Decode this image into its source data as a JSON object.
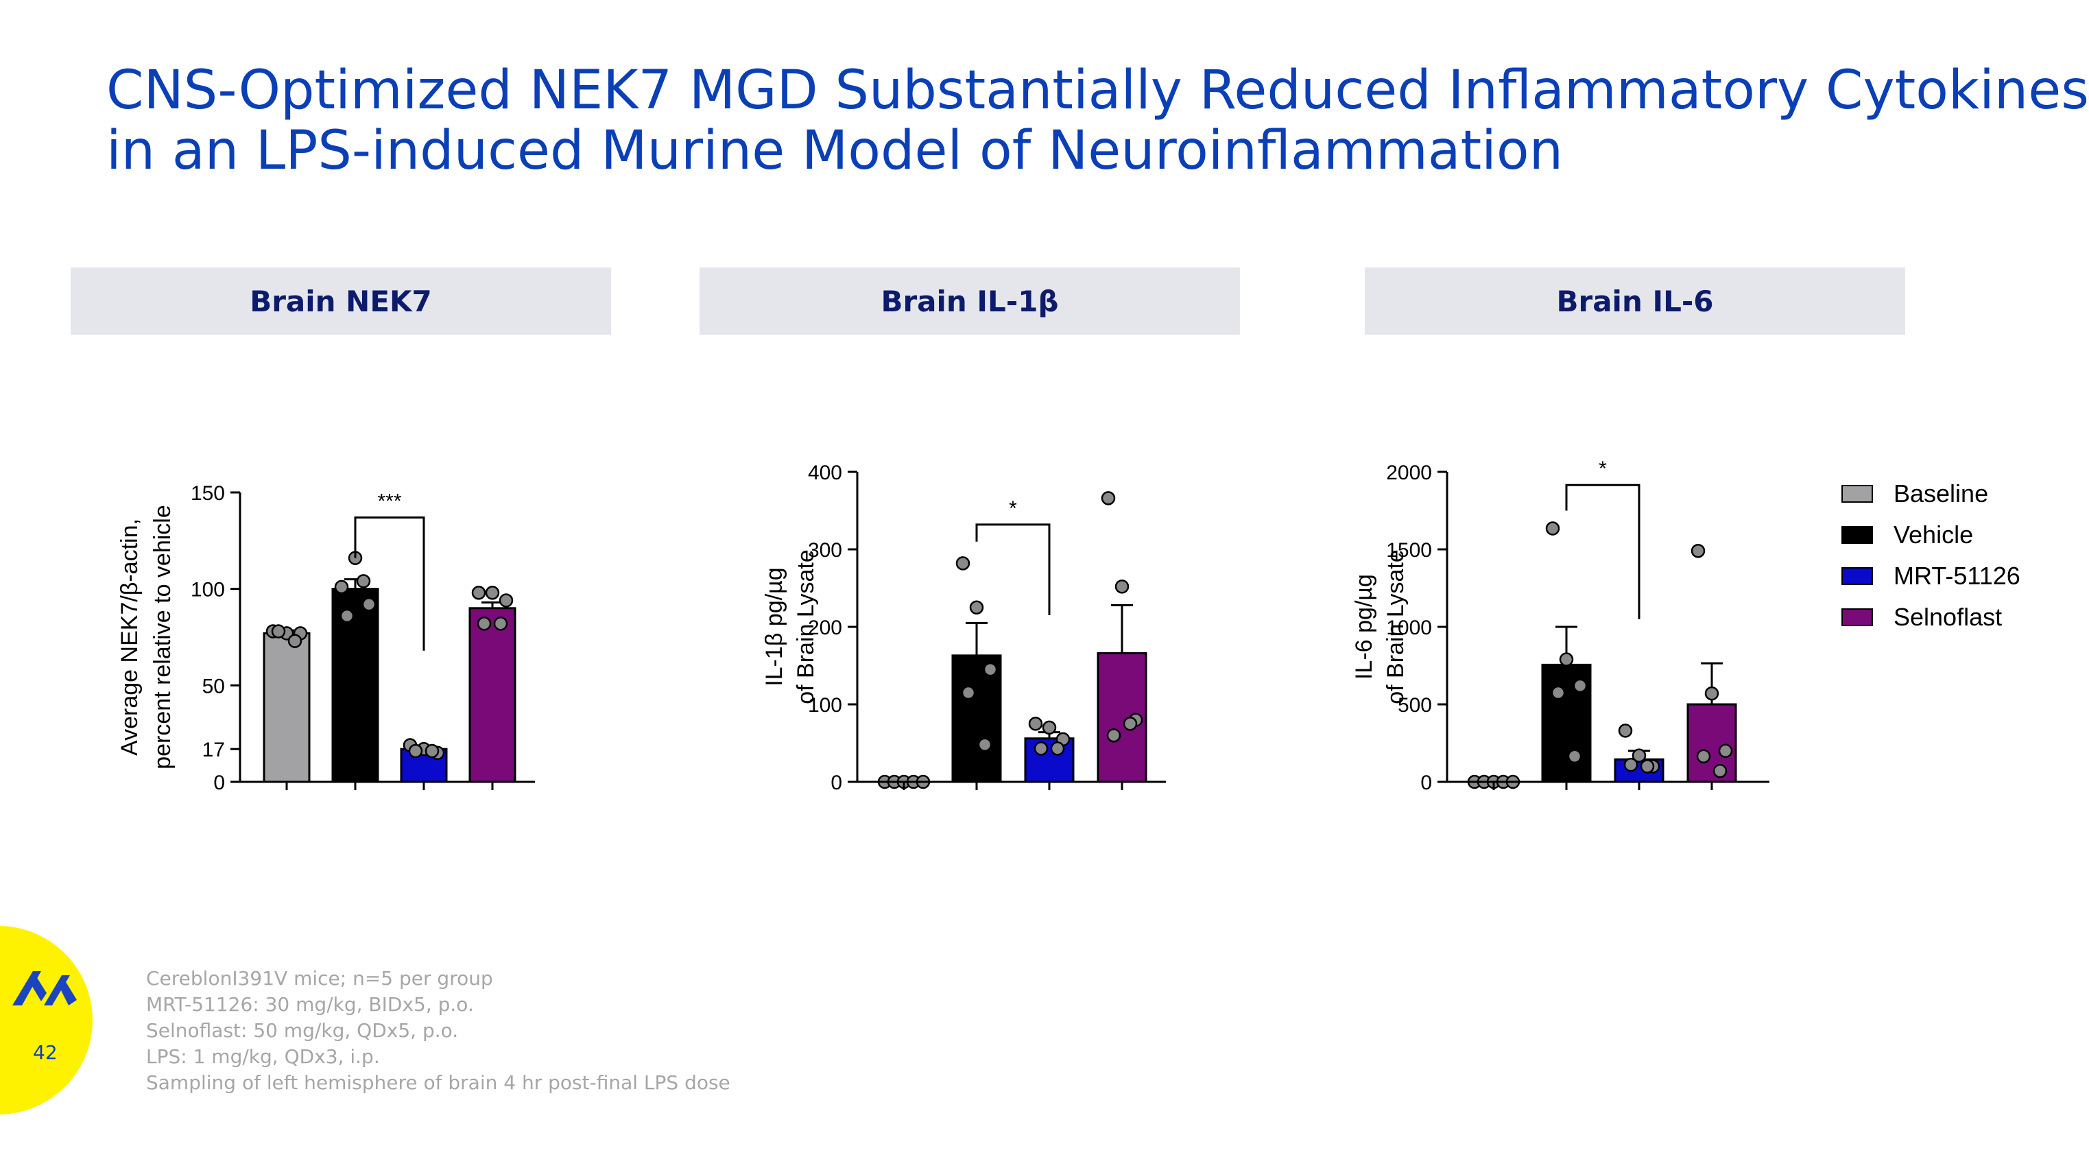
{
  "title": {
    "line1": "CNS-Optimized NEK7 MGD Substantially Reduced Inflammatory Cytokines",
    "line2": "in an LPS-induced Murine Model of Neuroinflammation"
  },
  "colors": {
    "title": "#0a3fb7",
    "baseline": "#a2a2a4",
    "vehicle": "#000000",
    "mrt": "#0a0acc",
    "selnoflast": "#7a0a78",
    "point_fill": "#8a8a8a",
    "header_bg": "#e5e6ec",
    "logo_yellow": "#fff200",
    "logo_blue": "#1a44c0"
  },
  "legend": {
    "items": [
      {
        "label": "Baseline",
        "color": "#a2a2a4"
      },
      {
        "label": "Vehicle",
        "color": "#000000"
      },
      {
        "label": "MRT-51126",
        "color": "#0a0acc"
      },
      {
        "label": "Selnoflast",
        "color": "#7a0a78"
      }
    ]
  },
  "chart_data": [
    {
      "type": "bar",
      "header": "Brain NEK7",
      "ylabel_lines": [
        "Average NEK7/β-actin,",
        "percent relative to vehicle"
      ],
      "ylim": [
        0,
        150
      ],
      "yticks": [
        0,
        17,
        50,
        100,
        150
      ],
      "categories": [
        "Baseline",
        "Vehicle",
        "MRT-51126",
        "Selnoflast"
      ],
      "values": [
        77,
        100,
        17,
        90
      ],
      "errors": [
        1.5,
        5,
        1.5,
        3
      ],
      "points": [
        [
          78,
          77,
          77,
          78,
          73
        ],
        [
          101,
          116,
          92,
          86,
          104
        ],
        [
          19,
          17,
          15,
          16,
          16
        ],
        [
          98,
          98,
          94,
          82,
          82
        ]
      ],
      "significance": {
        "from": 1,
        "to": 2,
        "label": "***",
        "y": 137,
        "left_end": 116,
        "right_end": 68
      }
    },
    {
      "type": "bar",
      "header": "Brain IL-1β",
      "ylabel_lines": [
        "IL-1β pg/µg",
        "of Brain  Lysate"
      ],
      "ylim": [
        0,
        400
      ],
      "yticks": [
        0,
        100,
        200,
        300,
        400
      ],
      "categories": [
        "Baseline",
        "Vehicle",
        "MRT-51126",
        "Selnoflast"
      ],
      "values": [
        0,
        163,
        56,
        166
      ],
      "errors": [
        0,
        42,
        8,
        62
      ],
      "points": [
        [
          0,
          0,
          0,
          0,
          0
        ],
        [
          282,
          225,
          145,
          115,
          48
        ],
        [
          75,
          70,
          55,
          43,
          43
        ],
        [
          366,
          252,
          80,
          60,
          75
        ]
      ],
      "significance": {
        "from": 1,
        "to": 2,
        "label": "*",
        "y": 332,
        "left_end": 310,
        "right_end": 215
      }
    },
    {
      "type": "bar",
      "header": "Brain IL-6",
      "ylabel_lines": [
        "IL-6 pg/µg",
        "of Brain  Lysate"
      ],
      "ylim": [
        0,
        2000
      ],
      "yticks": [
        0,
        500,
        1000,
        1500,
        2000
      ],
      "categories": [
        "Baseline",
        "Vehicle",
        "MRT-51126",
        "Selnoflast"
      ],
      "values": [
        0,
        755,
        145,
        500
      ],
      "errors": [
        0,
        245,
        55,
        265
      ],
      "points": [
        [
          0,
          0,
          0,
          0,
          0
        ],
        [
          1635,
          790,
          620,
          575,
          165
        ],
        [
          330,
          170,
          100,
          110,
          100
        ],
        [
          1490,
          570,
          200,
          165,
          70
        ]
      ],
      "significance": {
        "from": 1,
        "to": 2,
        "label": "*",
        "y": 1915,
        "left_end": 1750,
        "right_end": 1050
      }
    }
  ],
  "footnotes": [
    "CereblonI391V mice; n=5 per group",
    "MRT-51126: 30 mg/kg, BIDx5, p.o.",
    "Selnoflast: 50 mg/kg, QDx5, p.o.",
    "LPS: 1 mg/kg, QDx3, i.p.",
    "Sampling of left hemisphere of brain 4 hr post-final LPS dose"
  ],
  "page_number": "42"
}
